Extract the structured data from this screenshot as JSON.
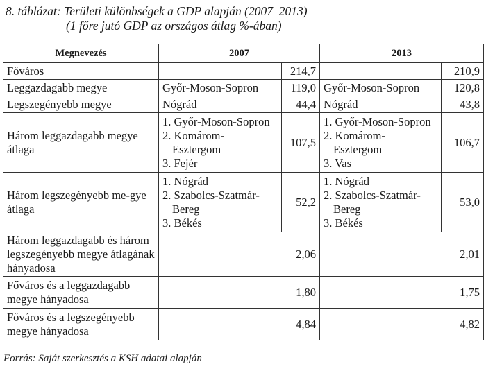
{
  "caption": {
    "line1": "8. táblázat: Területi különbségek a GDP alapján (2007–2013)",
    "line2": "(1 főre jutó GDP az országos átlag %-ában)"
  },
  "table": {
    "headers": {
      "name": "Megnevezés",
      "year1": "2007",
      "year2": "2013"
    },
    "rows": [
      {
        "label": "Főváros",
        "region2007": "",
        "value2007": "214,7",
        "region2013": "",
        "value2013": "210,9"
      },
      {
        "label": "Leggazdagabb megye",
        "region2007": "Győr-Moson-Sopron",
        "value2007": "119,0",
        "region2013": "Győr-Moson-Sopron",
        "value2013": "120,8"
      },
      {
        "label": "Legszegényebb megye",
        "region2007": "Nógrád",
        "value2007": "44,4",
        "region2013": "Nógrád",
        "value2013": "43,8"
      },
      {
        "label": "Három leggazdagabb megye átlaga",
        "list2007": [
          "1. Győr-Moson-Sopron",
          "2. Komárom-",
          "Esztergom",
          "3. Fejér"
        ],
        "value2007": "107,5",
        "list2013": [
          "1. Győr-Moson-Sopron",
          "2. Komárom-",
          "Esztergom",
          "3. Vas"
        ],
        "value2013": "106,7"
      },
      {
        "label": "Három legszegényebb me-gye átlaga",
        "list2007": [
          "1. Nógrád",
          "2. Szabolcs-Szatmár-",
          "Bereg",
          "3. Békés"
        ],
        "value2007": "52,2",
        "list2013": [
          "1. Nógrád",
          "2. Szabolcs-Szatmár-",
          "Bereg",
          "3. Békés"
        ],
        "value2013": "53,0"
      },
      {
        "label": "Három leggazdagabb és három legszegényebb megye átlagának hányadosa",
        "value2007": "2,06",
        "value2013": "2,01"
      },
      {
        "label": "Főváros és a leggazdagabb megye hányadosa",
        "value2007": "1,80",
        "value2013": "1,75"
      },
      {
        "label": "Főváros és a legszegényebb megye hányadosa",
        "value2007": "4,84",
        "value2013": "4,82"
      }
    ]
  },
  "source": "Forrás: Saját szerkesztés a KSH adatai alapján"
}
